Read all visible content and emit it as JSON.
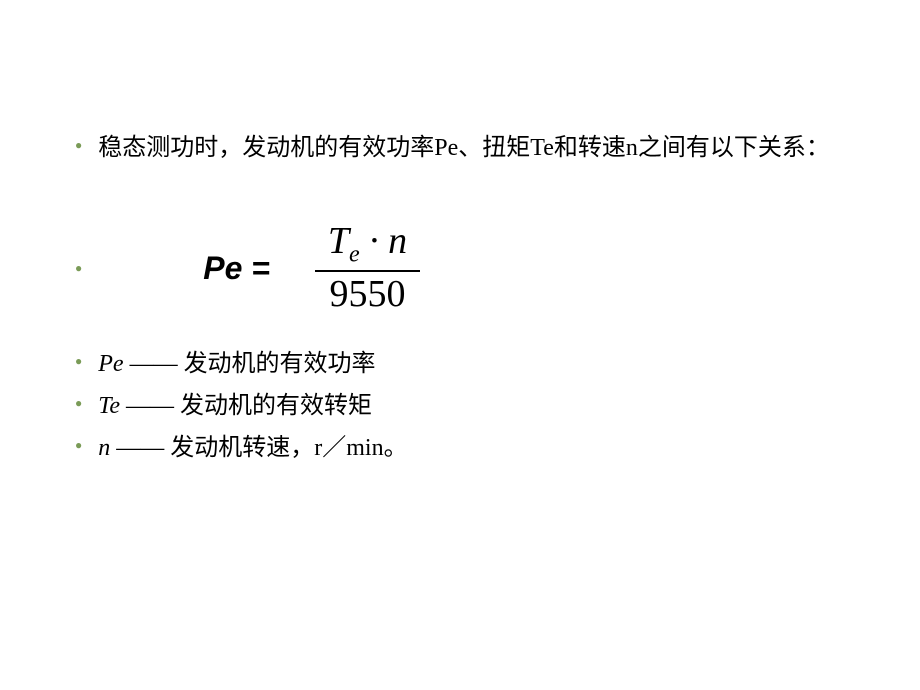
{
  "slide": {
    "background_color": "#ffffff",
    "bullet_color": "#7a9b57",
    "text_color": "#000000",
    "text_fontsize": 24
  },
  "items": {
    "intro": "稳态测功时，发动机的有效功率Pe、扭矩Te和转速n之间有以下关系：",
    "equation": {
      "lhs": "Pe  =",
      "numerator_T": "T",
      "numerator_sub": "e",
      "numerator_dot": " · ",
      "numerator_n": "n",
      "denominator": "9550"
    },
    "def_pe_var": "Pe",
    "def_pe": " —— 发动机的有效功率",
    "def_te_var": "Te",
    "def_te": " —— 发动机的有效转矩",
    "def_n_var": "n",
    "def_n": " —— 发动机转速，r／min。"
  }
}
